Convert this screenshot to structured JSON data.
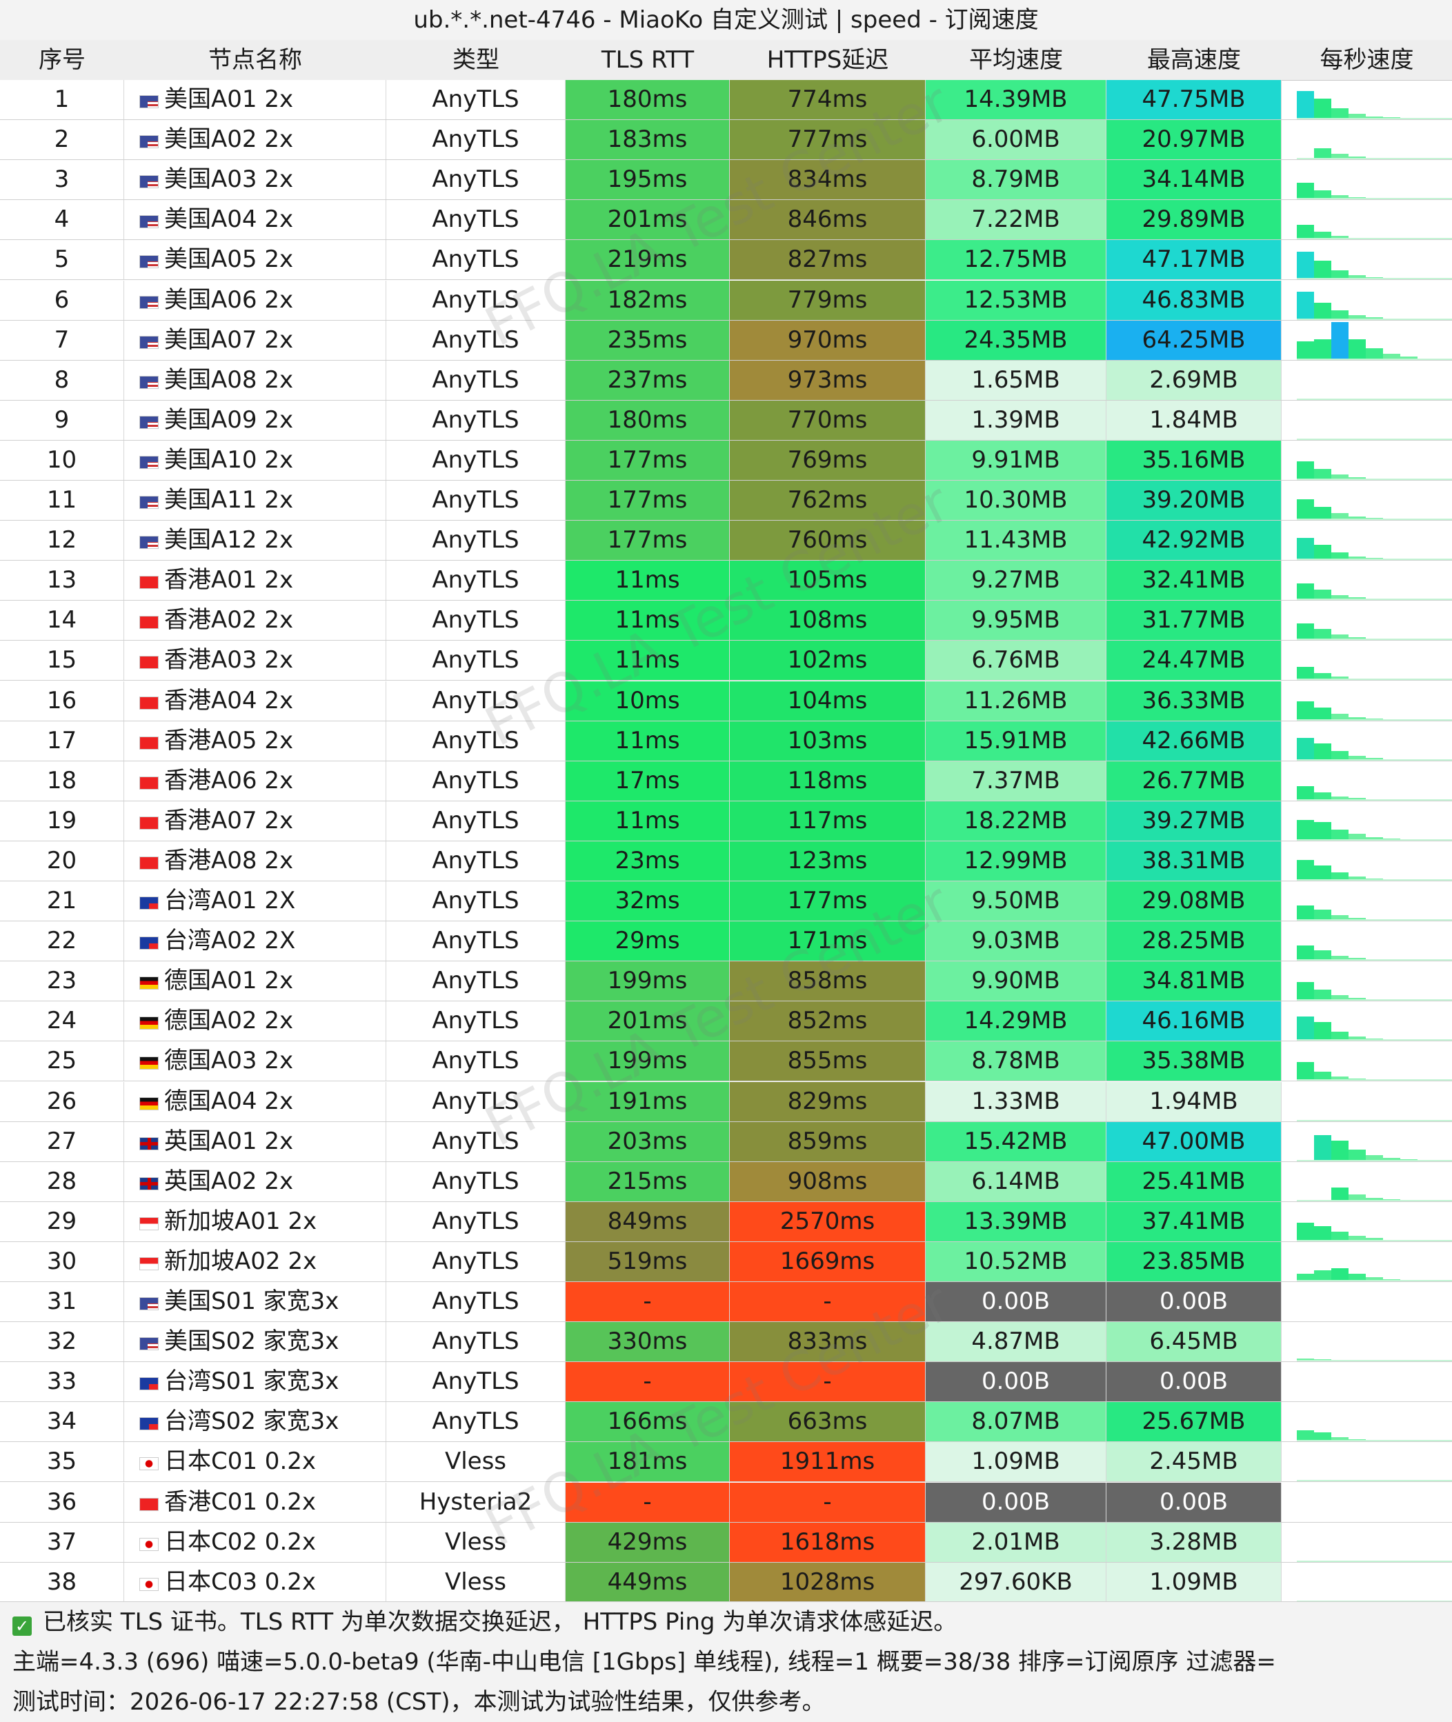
{
  "title": "ub.*.*.net-4746 - MiaoKo 自定义测试 | speed - 订阅速度",
  "headers": [
    "序号",
    "节点名称",
    "类型",
    "TLS RTT",
    "HTTPS延迟",
    "平均速度",
    "最高速度",
    "每秒速度"
  ],
  "rows": [
    {
      "id": "1",
      "name": "美国A01 2x",
      "flag": "us",
      "type": "AnyTLS",
      "rtt": "180ms",
      "https": "774ms",
      "avg": "14.39MB",
      "max": "47.75MB",
      "spark": [
        0.75,
        0.55,
        0.3,
        0.15,
        0.08,
        0.05,
        0.03
      ]
    },
    {
      "id": "2",
      "name": "美国A02 2x",
      "flag": "us",
      "type": "AnyTLS",
      "rtt": "183ms",
      "https": "777ms",
      "avg": "6.00MB",
      "max": "20.97MB",
      "spark": [
        0,
        0.3,
        0.15,
        0.08,
        0.04,
        0.02,
        0.01
      ]
    },
    {
      "id": "3",
      "name": "美国A03 2x",
      "flag": "us",
      "type": "AnyTLS",
      "rtt": "195ms",
      "https": "834ms",
      "avg": "8.79MB",
      "max": "34.14MB",
      "spark": [
        0.45,
        0.25,
        0.12,
        0.06,
        0.03,
        0.02,
        0.01
      ]
    },
    {
      "id": "4",
      "name": "美国A04 2x",
      "flag": "us",
      "type": "AnyTLS",
      "rtt": "201ms",
      "https": "846ms",
      "avg": "7.22MB",
      "max": "29.89MB",
      "spark": [
        0.4,
        0.2,
        0.1,
        0.05,
        0.03,
        0.02,
        0.01
      ]
    },
    {
      "id": "5",
      "name": "美国A05 2x",
      "flag": "us",
      "type": "AnyTLS",
      "rtt": "219ms",
      "https": "827ms",
      "avg": "12.75MB",
      "max": "47.17MB",
      "spark": [
        0.75,
        0.5,
        0.25,
        0.12,
        0.06,
        0.03,
        0.02
      ]
    },
    {
      "id": "6",
      "name": "美国A06 2x",
      "flag": "us",
      "type": "AnyTLS",
      "rtt": "182ms",
      "https": "779ms",
      "avg": "12.53MB",
      "max": "46.83MB",
      "spark": [
        0.75,
        0.45,
        0.25,
        0.12,
        0.06,
        0.03,
        0.02
      ]
    },
    {
      "id": "7",
      "name": "美国A07 2x",
      "flag": "us",
      "type": "AnyTLS",
      "rtt": "235ms",
      "https": "970ms",
      "avg": "24.35MB",
      "max": "64.25MB",
      "spark": [
        0.5,
        0.55,
        1.0,
        0.55,
        0.3,
        0.15,
        0.08
      ]
    },
    {
      "id": "8",
      "name": "美国A08 2x",
      "flag": "us",
      "type": "AnyTLS",
      "rtt": "237ms",
      "https": "973ms",
      "avg": "1.65MB",
      "max": "2.69MB",
      "spark": [
        0.03,
        0.02,
        0.02,
        0.01,
        0.01,
        0.01,
        0.01
      ]
    },
    {
      "id": "9",
      "name": "美国A09 2x",
      "flag": "us",
      "type": "AnyTLS",
      "rtt": "180ms",
      "https": "770ms",
      "avg": "1.39MB",
      "max": "1.84MB",
      "spark": [
        0.02,
        0.02,
        0.01,
        0.01,
        0.01,
        0.01,
        0.01
      ]
    },
    {
      "id": "10",
      "name": "美国A10 2x",
      "flag": "us",
      "type": "AnyTLS",
      "rtt": "177ms",
      "https": "769ms",
      "avg": "9.91MB",
      "max": "35.16MB",
      "spark": [
        0.5,
        0.3,
        0.15,
        0.08,
        0.04,
        0.02,
        0.01
      ]
    },
    {
      "id": "11",
      "name": "美国A11 2x",
      "flag": "us",
      "type": "AnyTLS",
      "rtt": "177ms",
      "https": "762ms",
      "avg": "10.30MB",
      "max": "39.20MB",
      "spark": [
        0.55,
        0.35,
        0.18,
        0.09,
        0.05,
        0.03,
        0.01
      ]
    },
    {
      "id": "12",
      "name": "美国A12 2x",
      "flag": "us",
      "type": "AnyTLS",
      "rtt": "177ms",
      "https": "760ms",
      "avg": "11.43MB",
      "max": "42.92MB",
      "spark": [
        0.6,
        0.4,
        0.2,
        0.1,
        0.05,
        0.03,
        0.02
      ]
    },
    {
      "id": "13",
      "name": "香港A01 2x",
      "flag": "hk",
      "type": "AnyTLS",
      "rtt": "11ms",
      "https": "105ms",
      "avg": "9.27MB",
      "max": "32.41MB",
      "spark": [
        0.45,
        0.28,
        0.14,
        0.07,
        0.04,
        0.02,
        0.01
      ]
    },
    {
      "id": "14",
      "name": "香港A02 2x",
      "flag": "hk",
      "type": "AnyTLS",
      "rtt": "11ms",
      "https": "108ms",
      "avg": "9.95MB",
      "max": "31.77MB",
      "spark": [
        0.45,
        0.3,
        0.15,
        0.08,
        0.04,
        0.02,
        0.01
      ]
    },
    {
      "id": "15",
      "name": "香港A03 2x",
      "flag": "hk",
      "type": "AnyTLS",
      "rtt": "11ms",
      "https": "102ms",
      "avg": "6.76MB",
      "max": "24.47MB",
      "spark": [
        0.35,
        0.2,
        0.1,
        0.05,
        0.03,
        0.02,
        0.01
      ]
    },
    {
      "id": "16",
      "name": "香港A04 2x",
      "flag": "hk",
      "type": "AnyTLS",
      "rtt": "10ms",
      "https": "104ms",
      "avg": "11.26MB",
      "max": "36.33MB",
      "spark": [
        0.5,
        0.35,
        0.18,
        0.09,
        0.05,
        0.03,
        0.01
      ]
    },
    {
      "id": "17",
      "name": "香港A05 2x",
      "flag": "hk",
      "type": "AnyTLS",
      "rtt": "11ms",
      "https": "103ms",
      "avg": "15.91MB",
      "max": "42.66MB",
      "spark": [
        0.6,
        0.45,
        0.25,
        0.12,
        0.06,
        0.03,
        0.02
      ]
    },
    {
      "id": "18",
      "name": "香港A06 2x",
      "flag": "hk",
      "type": "AnyTLS",
      "rtt": "17ms",
      "https": "118ms",
      "avg": "7.37MB",
      "max": "26.77MB",
      "spark": [
        0.38,
        0.22,
        0.11,
        0.06,
        0.03,
        0.02,
        0.01
      ]
    },
    {
      "id": "19",
      "name": "香港A07 2x",
      "flag": "hk",
      "type": "AnyTLS",
      "rtt": "11ms",
      "https": "117ms",
      "avg": "18.22MB",
      "max": "39.27MB",
      "spark": [
        0.55,
        0.5,
        0.3,
        0.18,
        0.09,
        0.05,
        0.02
      ]
    },
    {
      "id": "20",
      "name": "香港A08 2x",
      "flag": "hk",
      "type": "AnyTLS",
      "rtt": "23ms",
      "https": "123ms",
      "avg": "12.99MB",
      "max": "38.31MB",
      "spark": [
        0.55,
        0.4,
        0.22,
        0.11,
        0.06,
        0.03,
        0.02
      ]
    },
    {
      "id": "21",
      "name": "台湾A01 2X",
      "flag": "tw",
      "type": "AnyTLS",
      "rtt": "32ms",
      "https": "177ms",
      "avg": "9.50MB",
      "max": "29.08MB",
      "spark": [
        0.4,
        0.3,
        0.15,
        0.08,
        0.04,
        0.02,
        0.01
      ]
    },
    {
      "id": "22",
      "name": "台湾A02 2X",
      "flag": "tw",
      "type": "AnyTLS",
      "rtt": "29ms",
      "https": "171ms",
      "avg": "9.03MB",
      "max": "28.25MB",
      "spark": [
        0.4,
        0.28,
        0.14,
        0.07,
        0.04,
        0.02,
        0.01
      ]
    },
    {
      "id": "23",
      "name": "德国A01 2x",
      "flag": "de",
      "type": "AnyTLS",
      "rtt": "199ms",
      "https": "858ms",
      "avg": "9.90MB",
      "max": "34.81MB",
      "spark": [
        0.5,
        0.3,
        0.15,
        0.08,
        0.04,
        0.02,
        0.01
      ]
    },
    {
      "id": "24",
      "name": "德国A02 2x",
      "flag": "de",
      "type": "AnyTLS",
      "rtt": "201ms",
      "https": "852ms",
      "avg": "14.29MB",
      "max": "46.16MB",
      "spark": [
        0.65,
        0.5,
        0.25,
        0.12,
        0.06,
        0.03,
        0.02
      ]
    },
    {
      "id": "25",
      "name": "德国A03 2x",
      "flag": "de",
      "type": "AnyTLS",
      "rtt": "199ms",
      "https": "855ms",
      "avg": "8.78MB",
      "max": "35.38MB",
      "spark": [
        0.5,
        0.25,
        0.12,
        0.06,
        0.03,
        0.02,
        0.01
      ]
    },
    {
      "id": "26",
      "name": "德国A04 2x",
      "flag": "de",
      "type": "AnyTLS",
      "rtt": "191ms",
      "https": "829ms",
      "avg": "1.33MB",
      "max": "1.94MB",
      "spark": [
        0.02,
        0.02,
        0.01,
        0.01,
        0.01,
        0.01,
        0.01
      ]
    },
    {
      "id": "27",
      "name": "英国A01 2x",
      "flag": "gb",
      "type": "AnyTLS",
      "rtt": "203ms",
      "https": "859ms",
      "avg": "15.42MB",
      "max": "47.00MB",
      "spark": [
        0,
        0.7,
        0.55,
        0.3,
        0.15,
        0.08,
        0.04
      ]
    },
    {
      "id": "28",
      "name": "英国A02 2x",
      "flag": "gb",
      "type": "AnyTLS",
      "rtt": "215ms",
      "https": "908ms",
      "avg": "6.14MB",
      "max": "25.41MB",
      "spark": [
        0,
        0,
        0.36,
        0.18,
        0.09,
        0.05,
        0.02
      ]
    },
    {
      "id": "29",
      "name": "新加坡A01 2x",
      "flag": "sg",
      "type": "AnyTLS",
      "rtt": "849ms",
      "https": "2570ms",
      "avg": "13.39MB",
      "max": "37.41MB",
      "spark": [
        0.5,
        0.4,
        0.25,
        0.15,
        0.08,
        0.04,
        0.02
      ]
    },
    {
      "id": "30",
      "name": "新加坡A02 2x",
      "flag": "sg",
      "type": "AnyTLS",
      "rtt": "519ms",
      "https": "1669ms",
      "avg": "10.52MB",
      "max": "23.85MB",
      "spark": [
        0.2,
        0.3,
        0.35,
        0.2,
        0.1,
        0.05,
        0.02
      ]
    },
    {
      "id": "31",
      "name": "美国S01 家宽3x",
      "flag": "us",
      "type": "AnyTLS",
      "rtt": "-",
      "https": "-",
      "avg": "0.00B",
      "max": "0.00B",
      "spark": [
        0,
        0,
        0,
        0,
        0,
        0,
        0
      ]
    },
    {
      "id": "32",
      "name": "美国S02 家宽3x",
      "flag": "us",
      "type": "AnyTLS",
      "rtt": "330ms",
      "https": "833ms",
      "avg": "4.87MB",
      "max": "6.45MB",
      "spark": [
        0.08,
        0.06,
        0.04,
        0.03,
        0.02,
        0.01,
        0.01
      ]
    },
    {
      "id": "33",
      "name": "台湾S01 家宽3x",
      "flag": "tw",
      "type": "AnyTLS",
      "rtt": "-",
      "https": "-",
      "avg": "0.00B",
      "max": "0.00B",
      "spark": [
        0,
        0,
        0,
        0,
        0,
        0,
        0
      ]
    },
    {
      "id": "34",
      "name": "台湾S02 家宽3x",
      "flag": "tw",
      "type": "AnyTLS",
      "rtt": "166ms",
      "https": "663ms",
      "avg": "8.07MB",
      "max": "25.67MB",
      "spark": [
        0.3,
        0.25,
        0.12,
        0.06,
        0.03,
        0.02,
        0.01
      ]
    },
    {
      "id": "35",
      "name": "日本C01 0.2x",
      "flag": "jp",
      "type": "Vless",
      "rtt": "181ms",
      "https": "1911ms",
      "avg": "1.09MB",
      "max": "2.45MB",
      "spark": [
        0.02,
        0.02,
        0.01,
        0.01,
        0.01,
        0.01,
        0.01
      ]
    },
    {
      "id": "36",
      "name": "香港C01 0.2x",
      "flag": "hk",
      "type": "Hysteria2",
      "rtt": "-",
      "https": "-",
      "avg": "0.00B",
      "max": "0.00B",
      "spark": [
        0,
        0,
        0,
        0,
        0,
        0,
        0
      ]
    },
    {
      "id": "37",
      "name": "日本C02 0.2x",
      "flag": "jp",
      "type": "Vless",
      "rtt": "429ms",
      "https": "1618ms",
      "avg": "2.01MB",
      "max": "3.28MB",
      "spark": [
        0.03,
        0.02,
        0.02,
        0.01,
        0.01,
        0.01,
        0.01
      ]
    },
    {
      "id": "38",
      "name": "日本C03 0.2x",
      "flag": "jp",
      "type": "Vless",
      "rtt": "449ms",
      "https": "1028ms",
      "avg": "297.60KB",
      "max": "1.09MB",
      "spark": [
        0.01,
        0.01,
        0.01,
        0.01,
        0.01,
        0.01,
        0.01
      ]
    }
  ],
  "footer": {
    "line1": "已核实 TLS 证书。TLS RTT 为单次数据交换延迟，  HTTPS Ping 为单次请求体感延迟。",
    "line2": "主端=4.3.3 (696) 喵速=5.0.0-beta9 (华南-中山电信 [1Gbps] 单线程), 线程=1 概要=38/38 排序=订阅原序 过滤器=",
    "line3": "测试时间：2026-06-17 22:27:58 (CST)，本测试为试验性结果，仅供参考。"
  },
  "watermark": "FFQ.LA Test Center",
  "colors": {
    "rtt_low": "#1ee86a",
    "rtt_mid": "#5fc45a",
    "rtt_high": "#8a8a40",
    "fail": "#ff4a1a",
    "https_low": "#20e46a",
    "https_mid": "#7d9a3e",
    "https_high": "#a08a3a",
    "zero_speed": "#666666",
    "peak_speed": "#1ab0f0"
  }
}
